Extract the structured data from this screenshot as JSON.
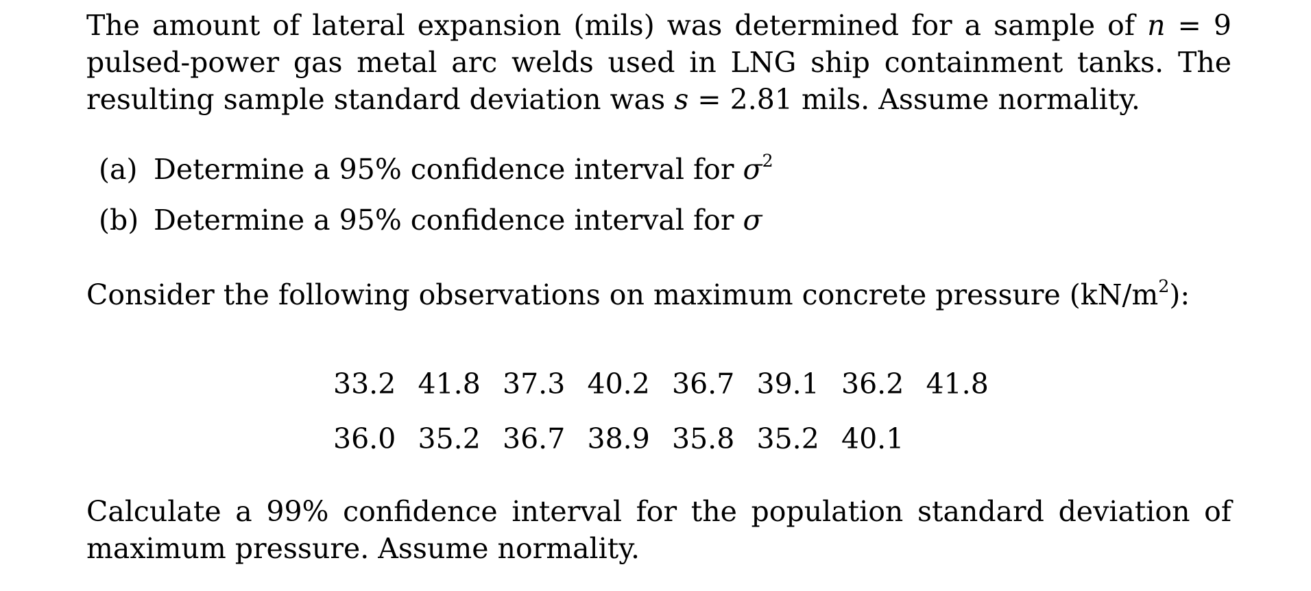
{
  "problem1": {
    "intro_1": "The amount of lateral expansion (mils) was determined for a sample of ",
    "n_symbol": "n",
    "n_eq": " = 9",
    "intro_2": " pulsed-power gas metal arc welds used in LNG ship containment tanks. The resulting sample standard deviation was ",
    "s_symbol": "s",
    "s_eq": " = 2.81",
    "intro_3": " mils. Assume normality.",
    "part_a_label": "(a)",
    "part_a_text": "Determine a 95% confidence interval for ",
    "part_a_symbol": "σ",
    "part_a_exp": "2",
    "part_b_label": "(b)",
    "part_b_text": "Determine a 95% confidence interval for ",
    "part_b_symbol": "σ"
  },
  "problem2": {
    "intro_1": "Consider the following observations on maximum concrete pressure (kN/m",
    "intro_exp": "2",
    "intro_2": "):",
    "row1": [
      "33.2",
      "41.8",
      "37.3",
      "40.2",
      "36.7",
      "39.1",
      "36.2",
      "41.8"
    ],
    "row2": [
      "36.0",
      "35.2",
      "36.7",
      "38.9",
      "35.8",
      "35.2",
      "40.1"
    ],
    "question": "Calculate a 99% confidence interval for the population standard deviation of maximum pressure. Assume normality."
  }
}
